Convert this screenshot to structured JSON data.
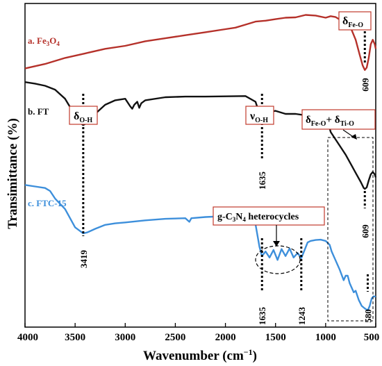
{
  "chart_data": {
    "type": "line",
    "xlabel": "Wavenumber (cm",
    "xlabel_sup": "−1",
    "xlabel_close": ")",
    "ylabel": "Transimittance (%)",
    "xlim": [
      4000,
      500
    ],
    "x_ticks": [
      4000,
      3500,
      3000,
      2500,
      2000,
      1500,
      1000,
      500
    ],
    "grid": false,
    "series": [
      {
        "name": "a. Fe3O4",
        "color": "#b5312a",
        "points": [
          [
            4000,
            63.5
          ],
          [
            3800,
            65
          ],
          [
            3600,
            67
          ],
          [
            3400,
            68.5
          ],
          [
            3200,
            70
          ],
          [
            3000,
            71
          ],
          [
            2800,
            72.5
          ],
          [
            2600,
            73.5
          ],
          [
            2400,
            74.5
          ],
          [
            2200,
            75.5
          ],
          [
            2000,
            76.5
          ],
          [
            1900,
            77
          ],
          [
            1800,
            78
          ],
          [
            1700,
            79
          ],
          [
            1600,
            79.3
          ],
          [
            1500,
            79.8
          ],
          [
            1400,
            80.3
          ],
          [
            1300,
            80.4
          ],
          [
            1200,
            81.2
          ],
          [
            1100,
            81
          ],
          [
            1000,
            80.3
          ],
          [
            950,
            80.8
          ],
          [
            900,
            80.5
          ],
          [
            850,
            79.5
          ],
          [
            800,
            78.5
          ],
          [
            750,
            77
          ],
          [
            700,
            73
          ],
          [
            660,
            68
          ],
          [
            630,
            64.5
          ],
          [
            609,
            63
          ],
          [
            590,
            63.8
          ],
          [
            570,
            67
          ],
          [
            550,
            71.5
          ],
          [
            530,
            73
          ],
          [
            510,
            71.5
          ],
          [
            500,
            70
          ]
        ]
      },
      {
        "name": "b. FT",
        "color": "#111111",
        "points": [
          [
            4000,
            59
          ],
          [
            3900,
            58.5
          ],
          [
            3800,
            57.8
          ],
          [
            3700,
            56.5
          ],
          [
            3600,
            53.5
          ],
          [
            3500,
            48
          ],
          [
            3450,
            45.5
          ],
          [
            3419,
            44.8
          ],
          [
            3380,
            45.5
          ],
          [
            3300,
            48.5
          ],
          [
            3200,
            51.5
          ],
          [
            3100,
            53
          ],
          [
            3000,
            53.5
          ],
          [
            2950,
            51
          ],
          [
            2930,
            50.2
          ],
          [
            2910,
            51.5
          ],
          [
            2880,
            52.5
          ],
          [
            2860,
            50.5
          ],
          [
            2840,
            52
          ],
          [
            2800,
            53
          ],
          [
            2600,
            54
          ],
          [
            2400,
            54.2
          ],
          [
            2200,
            54.2
          ],
          [
            2000,
            54.3
          ],
          [
            1800,
            54.4
          ],
          [
            1700,
            52.5
          ],
          [
            1650,
            47.5
          ],
          [
            1635,
            46
          ],
          [
            1620,
            47
          ],
          [
            1580,
            49
          ],
          [
            1500,
            49.5
          ],
          [
            1400,
            48.5
          ],
          [
            1300,
            48.5
          ],
          [
            1200,
            48
          ],
          [
            1100,
            46.8
          ],
          [
            1000,
            45.8
          ],
          [
            970,
            45
          ],
          [
            950,
            42.5
          ],
          [
            900,
            40
          ],
          [
            850,
            37.5
          ],
          [
            800,
            35
          ],
          [
            750,
            32
          ],
          [
            700,
            29
          ],
          [
            650,
            26
          ],
          [
            620,
            24
          ],
          [
            609,
            23.7
          ],
          [
            590,
            24.2
          ],
          [
            570,
            26.5
          ],
          [
            550,
            28.5
          ],
          [
            530,
            29.3
          ],
          [
            510,
            28.5
          ],
          [
            500,
            27.5
          ]
        ]
      },
      {
        "name": "c. FTC-15",
        "color": "#3d8fdb",
        "points": [
          [
            4000,
            25
          ],
          [
            3900,
            24.5
          ],
          [
            3800,
            24
          ],
          [
            3750,
            23
          ],
          [
            3700,
            20.5
          ],
          [
            3600,
            17
          ],
          [
            3500,
            11
          ],
          [
            3440,
            9.5
          ],
          [
            3419,
            9
          ],
          [
            3380,
            9.3
          ],
          [
            3300,
            10.5
          ],
          [
            3200,
            11.8
          ],
          [
            3100,
            12.3
          ],
          [
            3000,
            12.6
          ],
          [
            2800,
            13.3
          ],
          [
            2600,
            13.8
          ],
          [
            2400,
            14
          ],
          [
            2360,
            12.8
          ],
          [
            2340,
            14
          ],
          [
            2200,
            14.4
          ],
          [
            2000,
            14.7
          ],
          [
            1800,
            14.9
          ],
          [
            1750,
            13.5
          ],
          [
            1700,
            12
          ],
          [
            1660,
            4.5
          ],
          [
            1635,
            1.5
          ],
          [
            1600,
            3
          ],
          [
            1560,
            1
          ],
          [
            1520,
            3.5
          ],
          [
            1480,
            0.2
          ],
          [
            1440,
            3.8
          ],
          [
            1400,
            1.5
          ],
          [
            1360,
            4
          ],
          [
            1320,
            1
          ],
          [
            1280,
            2.5
          ],
          [
            1243,
            0.8
          ],
          [
            1210,
            3.5
          ],
          [
            1180,
            6
          ],
          [
            1150,
            6.5
          ],
          [
            1100,
            6.8
          ],
          [
            1050,
            6.9
          ],
          [
            1000,
            6.5
          ],
          [
            960,
            5.2
          ],
          [
            940,
            3
          ],
          [
            900,
            0
          ],
          [
            860,
            -3
          ],
          [
            820,
            -6.5
          ],
          [
            800,
            -5
          ],
          [
            780,
            -5
          ],
          [
            760,
            -7.5
          ],
          [
            720,
            -10.5
          ],
          [
            700,
            -10
          ],
          [
            670,
            -13
          ],
          [
            640,
            -15
          ],
          [
            610,
            -15.8
          ],
          [
            580,
            -16.5
          ],
          [
            560,
            -15
          ],
          [
            540,
            -12.5
          ],
          [
            520,
            -11.8
          ],
          [
            500,
            -12
          ]
        ]
      }
    ],
    "annotations": {
      "label_a": "a. Fe",
      "label_a_sub1": "3",
      "label_a_mid": "O",
      "label_a_sub2": "4",
      "label_b": "b. FT",
      "label_c": "c. FTC-15",
      "delta_oh_main": "δ",
      "delta_oh_sub": "O-H",
      "nu_oh_main": "ν",
      "nu_oh_sub": "O-H",
      "delta_feo_main": "δ",
      "delta_feo_sub": "Fe-O",
      "combo_main1": "δ",
      "combo_sub1": "Fe-O",
      "combo_plus": "+ ",
      "combo_main2": "δ",
      "combo_sub2": "Ti-O",
      "gcn_1": "g-C",
      "gcn_sub1": "3",
      "gcn_2": "N",
      "gcn_sub2": "4",
      "gcn_3": " heterocycles",
      "peaks": [
        "3419",
        "1635",
        "1635",
        "1243",
        "609",
        "609",
        "580"
      ]
    },
    "colors": {
      "annotation_box": "#c0392b"
    }
  }
}
